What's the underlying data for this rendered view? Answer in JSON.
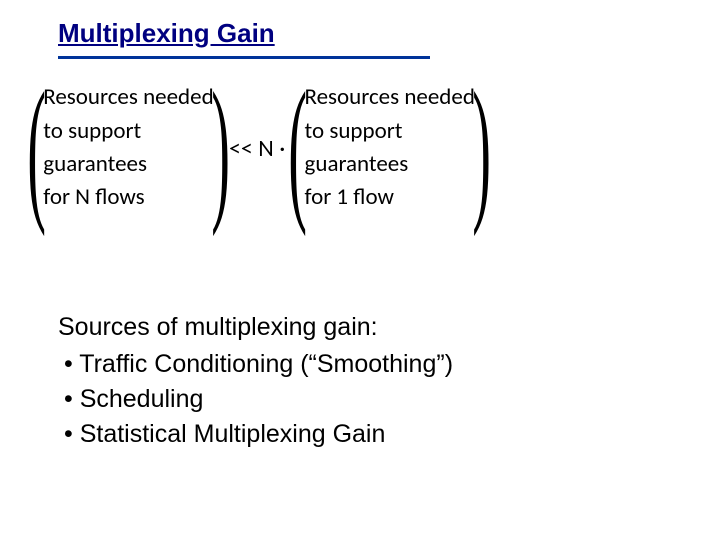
{
  "title": "Multiplexing Gain",
  "formula": {
    "left_block": {
      "line1": "Resources  needed",
      "line2": "to support",
      "line3": "guarantees",
      "line4": "for N flows"
    },
    "operator": "<< N ·",
    "right_block": {
      "line1": "Resources  needed",
      "line2": "to support",
      "line3": "guarantees",
      "line4": "for 1 flow"
    }
  },
  "sources": {
    "heading": "Sources of multiplexing gain:",
    "items": [
      "Traffic Conditioning (“Smoothing”)",
      "Scheduling",
      "Statistical Multiplexing Gain"
    ]
  },
  "colors": {
    "title_color": "#000080",
    "underline_color": "#003399",
    "text_color": "#000000",
    "background": "#ffffff"
  },
  "typography": {
    "title_font": "Comic Sans MS",
    "title_size_pt": 20,
    "body_font": "Comic Sans MS",
    "body_size_pt": 19,
    "formula_font": "Calibri",
    "formula_size_pt": 17
  }
}
